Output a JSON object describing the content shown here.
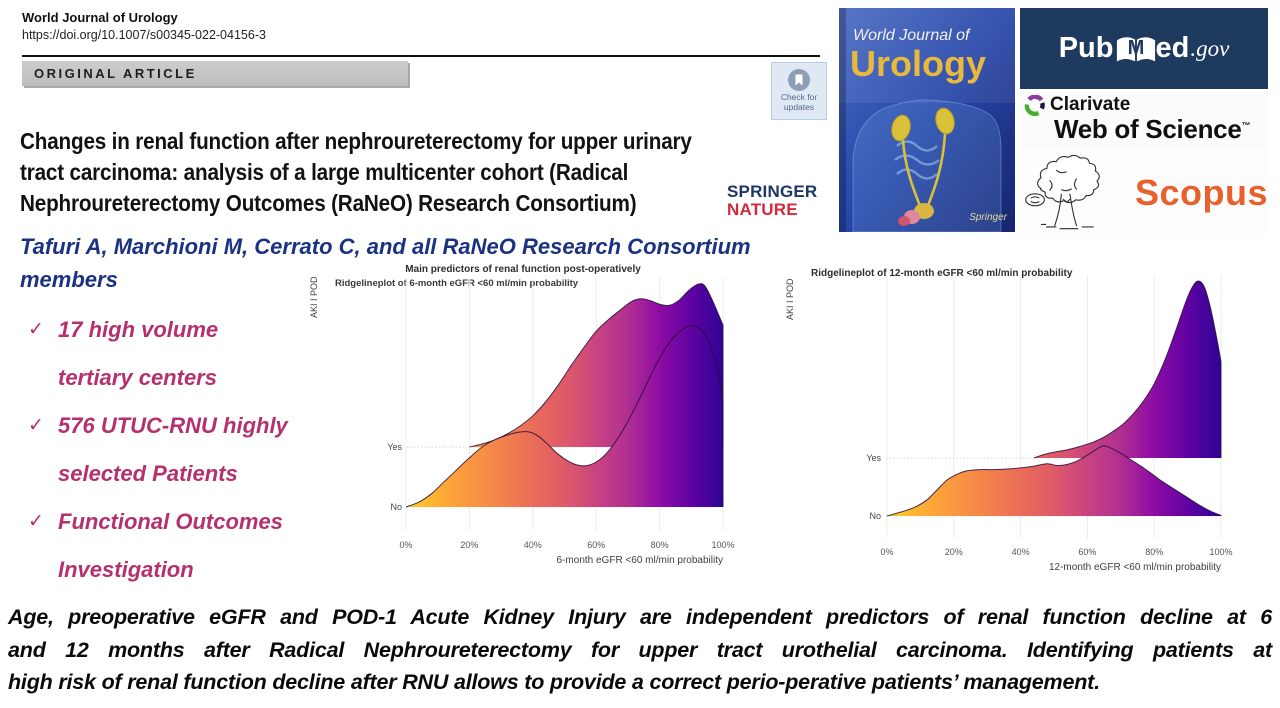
{
  "header": {
    "journal": "World Journal of Urology",
    "doi": "https://doi.org/10.1007/s00345-022-04156-3",
    "article_type": "ORIGINAL ARTICLE",
    "update_badge_line1": "Check for",
    "update_badge_line2": "updates"
  },
  "article": {
    "title_lines": [
      "Changes in renal function after nephroureterectomy for upper urinary",
      "tract carcinoma: analysis of a large multicenter cohort (Radical",
      "Nephroureterectomy Outcomes (RaNeO) Research Consortium)"
    ],
    "publisher_line1": "SPRINGER",
    "publisher_line2": "NATURE",
    "authors": "Tafuri A, Marchioni M, Cerrato C, and all RaNeO Research Consortium members"
  },
  "highlights": [
    {
      "line1": "17 high volume",
      "line2": "tertiary centers"
    },
    {
      "line1": "576 UTUC-RNU highly",
      "line2": "selected Patients"
    },
    {
      "line1": "Functional Outcomes",
      "line2": "Investigation"
    }
  ],
  "summary": {
    "lines": [
      "Age, preoperative eGFR and POD-1 Acute Kidney Injury are independent predictors of renal function decline at 6",
      "and 12 months after Radical Nephroureterectomy for upper tract urothelial carcinoma. Identifying patients at",
      "high risk of renal function decline after RNU allows to provide a correct perio-perative patients’ management."
    ]
  },
  "logos": {
    "cover": {
      "line1": "World Journal of",
      "line2": "Urology",
      "publisher": "Springer"
    },
    "pubmed": {
      "part1": "Pub",
      "m": "M",
      "part2": "ed",
      "gov": ".gov"
    },
    "clarivate": {
      "name": "Clarivate",
      "product": "Web of Science",
      "tm": "™"
    },
    "scopus": {
      "name": "Scopus"
    }
  },
  "colors": {
    "author_blue": "#1b3282",
    "highlight_magenta": "#b4316d",
    "springer_blue": "#1d3764",
    "nature_red": "#d5283c",
    "scopus_orange": "#e8602c",
    "pubmed_bg": "#1e3a5f",
    "clarivate_purple": "#8e3b9e",
    "clarivate_green": "#44b02a",
    "cover_gold": "#e8b93c"
  },
  "chart_data": [
    {
      "type": "area",
      "subtype": "ridgeline",
      "title": "Main predictors of renal function post-operatively",
      "subtitle": "Ridgelineplot of 6-month eGFR <60 ml/min probability",
      "xlabel": "6-month eGFR <60 ml/min probability",
      "ylabel": "AKI I POD",
      "xlim": [
        0,
        100
      ],
      "x_ticks": [
        "0%",
        "20%",
        "40%",
        "60%",
        "80%",
        "100%"
      ],
      "categories": [
        "Yes",
        "No"
      ],
      "grid": true,
      "legend": false,
      "gradient_stops": [
        [
          0,
          "#FCCE25"
        ],
        [
          0.12,
          "#FDA938"
        ],
        [
          0.25,
          "#F68D45"
        ],
        [
          0.38,
          "#EC7155"
        ],
        [
          0.5,
          "#DE5A68"
        ],
        [
          0.6,
          "#C9447F"
        ],
        [
          0.7,
          "#B02F91"
        ],
        [
          0.8,
          "#8E0CA4"
        ],
        [
          0.9,
          "#6002A3"
        ],
        [
          1,
          "#2D0594"
        ]
      ],
      "series": [
        {
          "name": "Yes",
          "points": [
            [
              20,
              0
            ],
            [
              24,
              0.05
            ],
            [
              28,
              0.12
            ],
            [
              32,
              0.22
            ],
            [
              36,
              0.35
            ],
            [
              40,
              0.52
            ],
            [
              44,
              0.75
            ],
            [
              48,
              1.03
            ],
            [
              52,
              1.35
            ],
            [
              56,
              1.65
            ],
            [
              60,
              1.93
            ],
            [
              64,
              2.13
            ],
            [
              68,
              2.3
            ],
            [
              71,
              2.42
            ],
            [
              74,
              2.47
            ],
            [
              77,
              2.44
            ],
            [
              80,
              2.38
            ],
            [
              83,
              2.36
            ],
            [
              86,
              2.44
            ],
            [
              89,
              2.6
            ],
            [
              92,
              2.71
            ],
            [
              94,
              2.7
            ],
            [
              96,
              2.52
            ],
            [
              98,
              2.28
            ],
            [
              100,
              2.03
            ]
          ]
        },
        {
          "name": "No",
          "points": [
            [
              0,
              0
            ],
            [
              4,
              0.08
            ],
            [
              8,
              0.22
            ],
            [
              12,
              0.42
            ],
            [
              16,
              0.62
            ],
            [
              20,
              0.82
            ],
            [
              24,
              1.0
            ],
            [
              28,
              1.12
            ],
            [
              32,
              1.2
            ],
            [
              36,
              1.25
            ],
            [
              39,
              1.25
            ],
            [
              42,
              1.17
            ],
            [
              45,
              1.03
            ],
            [
              48,
              0.88
            ],
            [
              51,
              0.77
            ],
            [
              54,
              0.7
            ],
            [
              57,
              0.69
            ],
            [
              60,
              0.75
            ],
            [
              63,
              0.88
            ],
            [
              66,
              1.08
            ],
            [
              69,
              1.33
            ],
            [
              72,
              1.63
            ],
            [
              75,
              1.95
            ],
            [
              78,
              2.28
            ],
            [
              81,
              2.57
            ],
            [
              84,
              2.8
            ],
            [
              87,
              2.95
            ],
            [
              90,
              3.02
            ],
            [
              93,
              2.95
            ],
            [
              96,
              2.7
            ],
            [
              98,
              2.35
            ],
            [
              100,
              1.8
            ]
          ]
        }
      ]
    },
    {
      "type": "area",
      "subtype": "ridgeline",
      "title": "Ridgelineplot of 12-month eGFR <60 ml/min probability",
      "xlabel": "12-month eGFR <60 ml/min probability",
      "ylabel": "AKI I POD",
      "xlim": [
        0,
        100
      ],
      "x_ticks": [
        "0%",
        "20%",
        "40%",
        "60%",
        "80%",
        "100%"
      ],
      "categories": [
        "Yes",
        "No"
      ],
      "grid": true,
      "legend": false,
      "gradient_stops": [
        [
          0,
          "#FCCE25"
        ],
        [
          0.12,
          "#FDA938"
        ],
        [
          0.25,
          "#F68D45"
        ],
        [
          0.38,
          "#EC7155"
        ],
        [
          0.5,
          "#DE5A68"
        ],
        [
          0.6,
          "#C9447F"
        ],
        [
          0.7,
          "#B02F91"
        ],
        [
          0.8,
          "#8E0CA4"
        ],
        [
          0.9,
          "#6002A3"
        ],
        [
          1,
          "#2D0594"
        ]
      ],
      "series": [
        {
          "name": "Yes",
          "points": [
            [
              44,
              0
            ],
            [
              47,
              0.06
            ],
            [
              50,
              0.1
            ],
            [
              53,
              0.13
            ],
            [
              56,
              0.17
            ],
            [
              59,
              0.22
            ],
            [
              62,
              0.28
            ],
            [
              65,
              0.36
            ],
            [
              68,
              0.47
            ],
            [
              71,
              0.6
            ],
            [
              74,
              0.78
            ],
            [
              77,
              1.0
            ],
            [
              80,
              1.28
            ],
            [
              83,
              1.66
            ],
            [
              86,
              2.12
            ],
            [
              89,
              2.62
            ],
            [
              91,
              2.9
            ],
            [
              93,
              3.05
            ],
            [
              95,
              2.95
            ],
            [
              97,
              2.55
            ],
            [
              99,
              1.98
            ],
            [
              100,
              1.66
            ]
          ]
        },
        {
          "name": "No",
          "points": [
            [
              0,
              0
            ],
            [
              3,
              0.05
            ],
            [
              6,
              0.1
            ],
            [
              9,
              0.17
            ],
            [
              12,
              0.28
            ],
            [
              15,
              0.45
            ],
            [
              18,
              0.62
            ],
            [
              21,
              0.72
            ],
            [
              24,
              0.78
            ],
            [
              28,
              0.8
            ],
            [
              32,
              0.8
            ],
            [
              36,
              0.81
            ],
            [
              40,
              0.83
            ],
            [
              44,
              0.86
            ],
            [
              48,
              0.9
            ],
            [
              51,
              0.87
            ],
            [
              54,
              0.89
            ],
            [
              57,
              0.95
            ],
            [
              60,
              1.05
            ],
            [
              63,
              1.16
            ],
            [
              65,
              1.21
            ],
            [
              67,
              1.17
            ],
            [
              70,
              1.08
            ],
            [
              73,
              0.97
            ],
            [
              76,
              0.86
            ],
            [
              79,
              0.74
            ],
            [
              82,
              0.61
            ],
            [
              85,
              0.5
            ],
            [
              88,
              0.39
            ],
            [
              91,
              0.28
            ],
            [
              94,
              0.17
            ],
            [
              97,
              0.08
            ],
            [
              100,
              0.01
            ]
          ]
        }
      ]
    }
  ]
}
